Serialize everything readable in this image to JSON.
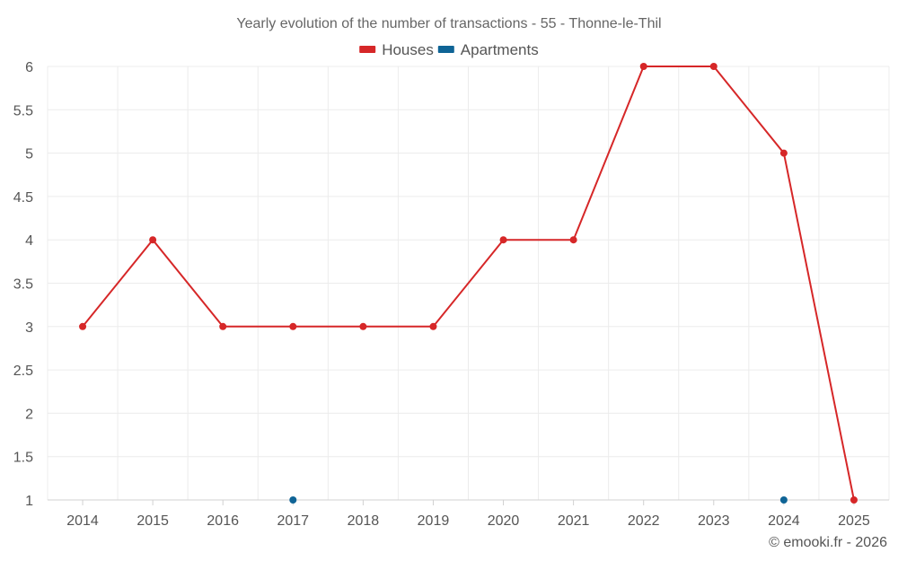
{
  "chart_data": {
    "type": "line",
    "title": "Yearly evolution of the number of transactions - 55 - Thonne-le-Thil",
    "categories": [
      "2014",
      "2015",
      "2016",
      "2017",
      "2018",
      "2019",
      "2020",
      "2021",
      "2022",
      "2023",
      "2024",
      "2025"
    ],
    "ylim": [
      1,
      6
    ],
    "yticks": [
      "1",
      "1.5",
      "2",
      "2.5",
      "3",
      "3.5",
      "4",
      "4.5",
      "5",
      "5.5",
      "6"
    ],
    "grid": true,
    "legend_position": "top-center",
    "series": [
      {
        "name": "Houses",
        "color": "#d62728",
        "values": [
          3,
          4,
          3,
          3,
          3,
          3,
          4,
          4,
          6,
          6,
          5,
          1
        ]
      },
      {
        "name": "Apartments",
        "color": "#0f6496",
        "values": [
          null,
          null,
          null,
          1,
          null,
          null,
          null,
          null,
          null,
          null,
          1,
          null
        ]
      }
    ]
  },
  "credit": "© emooki.fr - 2026"
}
